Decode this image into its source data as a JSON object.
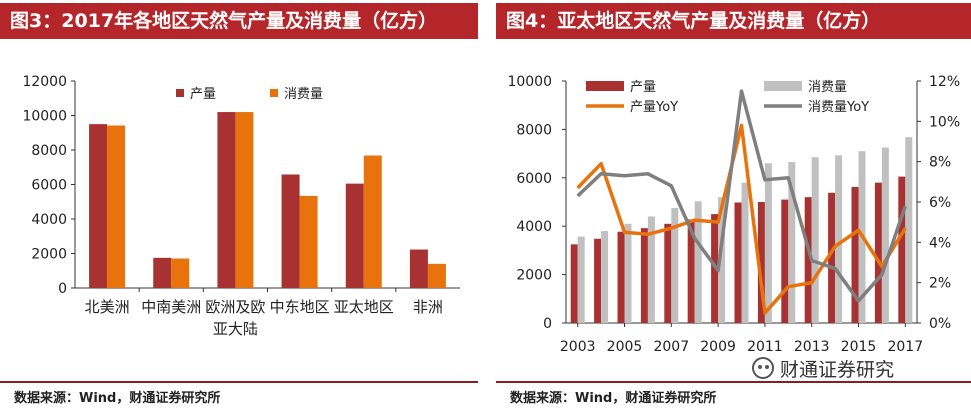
{
  "left": {
    "title": "图3：2017年各地区天然气产量及消费量（亿方）",
    "source": "数据来源：Wind，财通证券研究所"
  },
  "right": {
    "title": "图4：亚太地区天然气产量及消费量（亿方）",
    "source": "数据来源：Wind，财通证券研究所"
  },
  "watermark": {
    "text": "财通证券研究"
  },
  "chart_data": [
    {
      "type": "bar",
      "categories": [
        [
          "北美洲"
        ],
        [
          "中南美洲"
        ],
        [
          "欧洲及欧",
          "亚大陆"
        ],
        [
          "中东地区"
        ],
        [
          "亚太地区"
        ],
        [
          "非洲"
        ]
      ],
      "series": [
        {
          "name": "产量",
          "color": "#a83232",
          "values": [
            9500,
            1750,
            10200,
            6580,
            6050,
            2230
          ]
        },
        {
          "name": "消费量",
          "color": "#e8730c",
          "values": [
            9420,
            1710,
            10200,
            5340,
            7680,
            1400
          ]
        }
      ],
      "ylim": [
        0,
        12000
      ],
      "yticks": [
        0,
        2000,
        4000,
        6000,
        8000,
        10000,
        12000
      ],
      "legend": "top-center",
      "grid": false
    },
    {
      "type": "bar+line",
      "x": [
        2003,
        2004,
        2005,
        2006,
        2007,
        2008,
        2009,
        2010,
        2011,
        2012,
        2013,
        2014,
        2015,
        2016,
        2017
      ],
      "xticks": [
        2003,
        2005,
        2007,
        2009,
        2011,
        2013,
        2015,
        2017
      ],
      "bars": [
        {
          "name": "产量",
          "color": "#a83232",
          "values": [
            3250,
            3480,
            3770,
            3920,
            4100,
            4280,
            4500,
            4980,
            5000,
            5100,
            5200,
            5380,
            5620,
            5800,
            6050
          ]
        },
        {
          "name": "消费量",
          "color": "#c0c0c0",
          "values": [
            3570,
            3800,
            4100,
            4400,
            4750,
            5030,
            5200,
            5800,
            6600,
            6650,
            6850,
            6930,
            7100,
            7250,
            7680
          ]
        }
      ],
      "lines": [
        {
          "name": "产量YoY",
          "color": "#e8730c",
          "values": [
            6.7,
            7.9,
            4.5,
            4.4,
            4.7,
            5.1,
            5.0,
            9.8,
            0.5,
            1.8,
            2.0,
            3.8,
            4.6,
            2.8,
            4.7
          ]
        },
        {
          "name": "消费量YoY",
          "color": "#7f7f7f",
          "values": [
            6.3,
            7.4,
            7.3,
            7.4,
            6.8,
            4.2,
            2.6,
            11.5,
            7.1,
            7.2,
            3.1,
            2.7,
            1.1,
            2.4,
            5.8
          ]
        }
      ],
      "ylim_left": [
        0,
        10000
      ],
      "yticks_left": [
        0,
        2000,
        4000,
        6000,
        8000,
        10000
      ],
      "ylim_right": [
        0,
        12
      ],
      "yticks_right": [
        "0%",
        "2%",
        "4%",
        "6%",
        "8%",
        "10%",
        "12%"
      ],
      "legend": "top",
      "grid": false
    }
  ]
}
